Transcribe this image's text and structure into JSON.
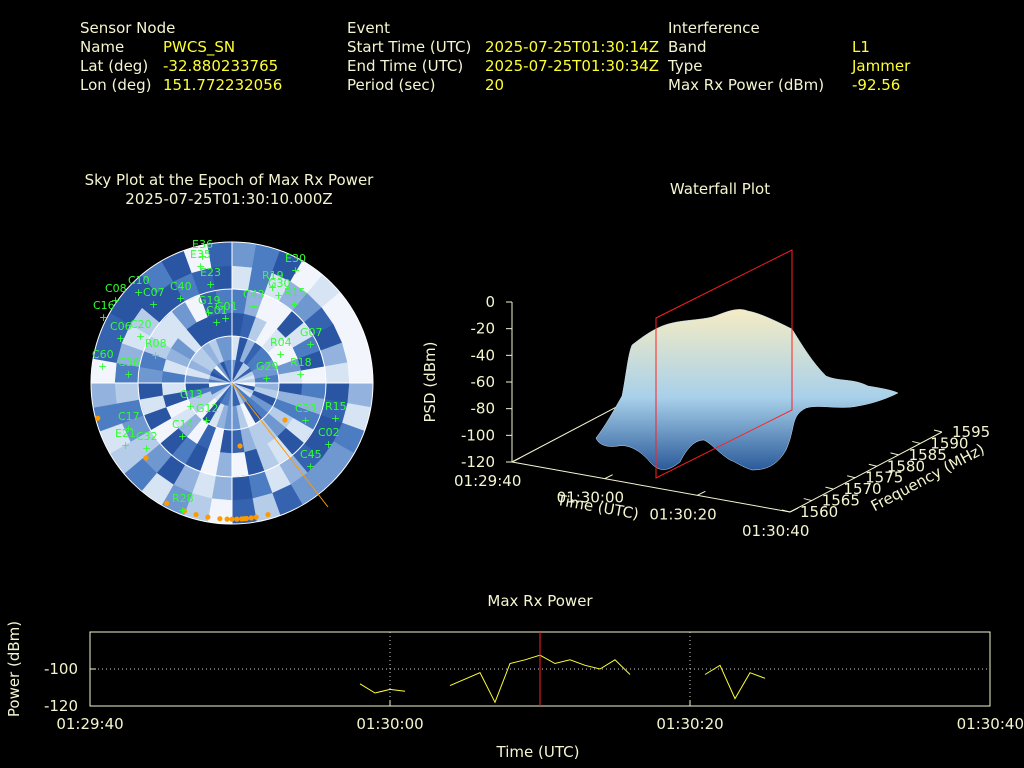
{
  "header": {
    "sensor": {
      "heading": "Sensor Node",
      "name_label": "Name",
      "name": "PWCS_SN",
      "lat_label": "Lat (deg)",
      "lat": "-32.880233765",
      "lon_label": "Lon (deg)",
      "lon": "151.772232056"
    },
    "event": {
      "heading": "Event",
      "start_label": "Start Time (UTC)",
      "start": "2025-07-25T01:30:14Z",
      "end_label": "End Time (UTC)",
      "end": "2025-07-25T01:30:34Z",
      "period_label": "Period (sec)",
      "period": "20"
    },
    "interference": {
      "heading": "Interference",
      "band_label": "Band",
      "band": "L1",
      "type_label": "Type",
      "type": "Jammer",
      "maxrx_label": "Max Rx Power (dBm)",
      "maxrx": "-92.56"
    }
  },
  "chart_data": [
    {
      "type": "scatter",
      "title": "Sky Plot at the Epoch of Max Rx Power",
      "subtitle": "2025-07-25T01:30:10.000Z",
      "satellite_color": "#30ff30",
      "satellites": [
        "E36",
        "E35",
        "E23",
        "E30",
        "R19",
        "G30",
        "C40",
        "R15",
        "C08",
        "C10",
        "C07",
        "G19",
        "C16",
        "C01",
        "C06",
        "G01",
        "C20",
        "G07",
        "R08",
        "R04",
        "C43",
        "G29",
        "G13",
        "R18",
        "C60",
        "C36",
        "G12",
        "C33",
        "R15",
        "C17",
        "C14",
        "C02",
        "C32",
        "E21",
        "C45",
        "R28"
      ],
      "marker_color": "#ff9900"
    },
    {
      "type": "heatmap",
      "title": "Waterfall Plot",
      "zlabel": "PSD (dBm)",
      "xlabel": "Time (UTC)",
      "ylabel": "Frequency (MHz)",
      "zticks": [
        "0",
        "-20",
        "-40",
        "-60",
        "-80",
        "-100",
        "-120"
      ],
      "xticks": [
        "01:29:40",
        "01:30:00",
        "01:30:20",
        "01:30:40"
      ],
      "yticks": [
        "1560",
        "1565",
        "1570",
        "1575",
        "1580",
        "1585",
        "1590",
        "1595"
      ],
      "zlim": [
        -120,
        0
      ],
      "marker_time": "01:30:10",
      "marker_color": "#ff2020"
    },
    {
      "type": "line",
      "title": "Max Rx Power",
      "xlabel": "Time (UTC)",
      "ylabel": "Power (dBm)",
      "yticks": [
        "-100",
        "-120"
      ],
      "xticks": [
        "01:29:40",
        "01:30:00",
        "01:30:20",
        "01:30:40"
      ],
      "ylim": [
        -120,
        -80
      ],
      "xlim": [
        0,
        60
      ],
      "line_color": "#ffff30",
      "marker_x": 30,
      "marker_color": "#ff2020",
      "series": [
        {
          "x": [
            18,
            19,
            20,
            21
          ],
          "y": [
            -108,
            -113,
            -111,
            -112
          ]
        },
        {
          "x": [
            24,
            26,
            27,
            28,
            29,
            30,
            31,
            32,
            33,
            34,
            35,
            36
          ],
          "y": [
            -109,
            -102,
            -118,
            -97,
            -95,
            -92.56,
            -97,
            -95,
            -98,
            -100,
            -95,
            -103
          ]
        },
        {
          "x": [
            41,
            42,
            43,
            44,
            45
          ],
          "y": [
            -103,
            -98,
            -116,
            -102,
            -105
          ]
        }
      ]
    }
  ]
}
